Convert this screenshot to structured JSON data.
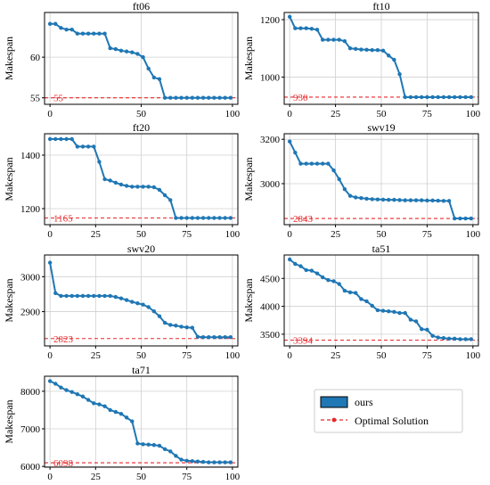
{
  "colors": {
    "series": "#1f77b4",
    "optimal": "#e8282b",
    "grid": "#d0d0d0",
    "axis": "#000000"
  },
  "legend": {
    "items": [
      {
        "label": "ours",
        "style": "patch"
      },
      {
        "label": "Optimal Solution",
        "style": "dashed-line-marker"
      }
    ],
    "placement": "bottom-right"
  },
  "chart_data": [
    {
      "type": "line",
      "title": "ft06",
      "xlabel": "",
      "ylabel": "Makespan",
      "xlim": [
        -3,
        103
      ],
      "ylim": [
        54.2,
        65.5
      ],
      "xticks": [
        0,
        50,
        100
      ],
      "yticks": [
        55,
        60
      ],
      "optimal": 55,
      "optimal_label": "55",
      "x": [
        0,
        3,
        6,
        9,
        12,
        15,
        18,
        21,
        24,
        27,
        30,
        33,
        36,
        39,
        42,
        45,
        48,
        51,
        54,
        57,
        60,
        63,
        66,
        69,
        72,
        75,
        78,
        81,
        84,
        87,
        90,
        93,
        96,
        99
      ],
      "y": [
        64.1,
        64.1,
        63.6,
        63.4,
        63.4,
        62.9,
        62.9,
        62.9,
        62.9,
        62.9,
        62.9,
        61.1,
        61.0,
        60.8,
        60.7,
        60.6,
        60.4,
        60.0,
        58.6,
        57.5,
        57.3,
        55.0,
        55,
        55,
        55,
        55,
        55,
        55,
        55,
        55,
        55,
        55,
        55,
        55
      ]
    },
    {
      "type": "line",
      "title": "ft10",
      "xlabel": "",
      "ylabel": "Makespan",
      "xlim": [
        -3,
        103
      ],
      "ylim": [
        905,
        1225
      ],
      "xticks": [
        0,
        25,
        50,
        75,
        100
      ],
      "yticks": [
        1000,
        1200
      ],
      "optimal": 930,
      "optimal_label": "930",
      "x": [
        0,
        3,
        6,
        9,
        12,
        15,
        18,
        21,
        24,
        27,
        30,
        33,
        36,
        39,
        42,
        45,
        48,
        51,
        54,
        57,
        60,
        63,
        66,
        69,
        72,
        75,
        78,
        81,
        84,
        87,
        90,
        93,
        96,
        99
      ],
      "y": [
        1210,
        1170,
        1170,
        1170,
        1168,
        1165,
        1130,
        1130,
        1130,
        1130,
        1125,
        1100,
        1098,
        1096,
        1095,
        1094,
        1094,
        1092,
        1075,
        1060,
        1010,
        930,
        930,
        930,
        930,
        930,
        930,
        930,
        930,
        930,
        930,
        930,
        930,
        930
      ]
    },
    {
      "type": "line",
      "title": "ft20",
      "xlabel": "",
      "ylabel": "Makespan",
      "xlim": [
        -3,
        103
      ],
      "ylim": [
        1140,
        1480
      ],
      "xticks": [
        0,
        25,
        50,
        75,
        100
      ],
      "yticks": [
        1200,
        1400
      ],
      "optimal": 1165,
      "optimal_label": "1165",
      "x": [
        0,
        3,
        6,
        9,
        12,
        15,
        18,
        21,
        24,
        27,
        30,
        33,
        36,
        39,
        42,
        45,
        48,
        51,
        54,
        57,
        60,
        63,
        66,
        69,
        72,
        75,
        78,
        81,
        84,
        87,
        90,
        93,
        96,
        99
      ],
      "y": [
        1460,
        1460,
        1460,
        1460,
        1460,
        1432,
        1432,
        1432,
        1432,
        1375,
        1310,
        1305,
        1297,
        1290,
        1285,
        1282,
        1282,
        1282,
        1282,
        1280,
        1270,
        1250,
        1232,
        1165,
        1165,
        1165,
        1165,
        1165,
        1165,
        1165,
        1165,
        1165,
        1165,
        1165
      ]
    },
    {
      "type": "line",
      "title": "swv19",
      "xlabel": "",
      "ylabel": "Makespan",
      "xlim": [
        -3,
        103
      ],
      "ylim": [
        2815,
        3225
      ],
      "xticks": [
        0,
        25,
        50,
        75,
        100
      ],
      "yticks": [
        3000,
        3200
      ],
      "optimal": 2843,
      "optimal_label": "2843",
      "x": [
        0,
        3,
        6,
        9,
        12,
        15,
        18,
        21,
        24,
        27,
        30,
        33,
        36,
        39,
        42,
        45,
        48,
        51,
        54,
        57,
        60,
        63,
        66,
        69,
        72,
        75,
        78,
        81,
        84,
        87,
        90,
        93,
        96,
        99
      ],
      "y": [
        3190,
        3140,
        3090,
        3090,
        3090,
        3090,
        3090,
        3090,
        3060,
        3020,
        2975,
        2945,
        2938,
        2935,
        2932,
        2930,
        2929,
        2928,
        2927,
        2927,
        2926,
        2925,
        2925,
        2925,
        2925,
        2924,
        2924,
        2923,
        2922,
        2922,
        2843,
        2843,
        2843,
        2843
      ]
    },
    {
      "type": "line",
      "title": "swv20",
      "xlabel": "",
      "ylabel": "Makespan",
      "xlim": [
        -3,
        103
      ],
      "ylim": [
        2802,
        3062
      ],
      "xticks": [
        0,
        25,
        50,
        75,
        100
      ],
      "yticks": [
        2900,
        3000
      ],
      "optimal": 2823,
      "optimal_label": "2823",
      "x": [
        0,
        3,
        6,
        9,
        12,
        15,
        18,
        21,
        24,
        27,
        30,
        33,
        36,
        39,
        42,
        45,
        48,
        51,
        54,
        57,
        60,
        63,
        66,
        69,
        72,
        75,
        78,
        81,
        84,
        87,
        90,
        93,
        96,
        99
      ],
      "y": [
        3040,
        2953,
        2945,
        2945,
        2945,
        2945,
        2945,
        2945,
        2945,
        2945,
        2945,
        2945,
        2942,
        2938,
        2933,
        2928,
        2924,
        2920,
        2913,
        2901,
        2887,
        2868,
        2862,
        2860,
        2857,
        2855,
        2854,
        2828,
        2827,
        2827,
        2827,
        2827,
        2827,
        2827
      ]
    },
    {
      "type": "line",
      "title": "ta51",
      "xlabel": "",
      "ylabel": "Makespan",
      "xlim": [
        -3,
        103
      ],
      "ylim": [
        3290,
        4920
      ],
      "xticks": [
        0,
        25,
        50,
        75,
        100
      ],
      "yticks": [
        3500,
        4000,
        4500
      ],
      "optimal": 3394,
      "optimal_label": "3394",
      "x": [
        0,
        3,
        6,
        9,
        12,
        15,
        18,
        21,
        24,
        27,
        30,
        33,
        36,
        39,
        42,
        45,
        48,
        51,
        54,
        57,
        60,
        63,
        66,
        69,
        72,
        75,
        78,
        81,
        84,
        87,
        90,
        93,
        96,
        99
      ],
      "y": [
        4840,
        4760,
        4720,
        4650,
        4640,
        4590,
        4520,
        4470,
        4450,
        4400,
        4280,
        4250,
        4240,
        4130,
        4090,
        4010,
        3930,
        3920,
        3910,
        3900,
        3880,
        3880,
        3760,
        3730,
        3590,
        3580,
        3470,
        3440,
        3430,
        3420,
        3420,
        3410,
        3410,
        3410
      ]
    },
    {
      "type": "line",
      "title": "ta71",
      "xlabel": "",
      "ylabel": "Makespan",
      "xlim": [
        -3,
        103
      ],
      "ylim": [
        5980,
        8400
      ],
      "xticks": [
        0,
        25,
        50,
        75,
        100
      ],
      "yticks": [
        6000,
        7000,
        8000
      ],
      "optimal": 6098,
      "optimal_label": "6098",
      "x": [
        0,
        3,
        6,
        9,
        12,
        15,
        18,
        21,
        24,
        27,
        30,
        33,
        36,
        39,
        42,
        45,
        48,
        51,
        54,
        57,
        60,
        63,
        66,
        69,
        72,
        75,
        78,
        81,
        84,
        87,
        90,
        93,
        96,
        99
      ],
      "y": [
        8270,
        8200,
        8100,
        8030,
        7980,
        7920,
        7860,
        7770,
        7680,
        7650,
        7600,
        7500,
        7450,
        7400,
        7300,
        7200,
        6610,
        6590,
        6580,
        6570,
        6550,
        6460,
        6400,
        6280,
        6180,
        6150,
        6140,
        6130,
        6120,
        6110,
        6110,
        6110,
        6110,
        6110
      ]
    }
  ]
}
